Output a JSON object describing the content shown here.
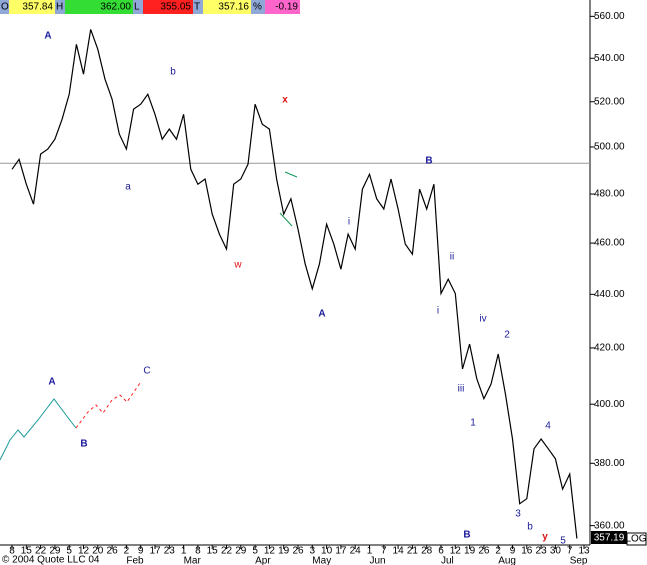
{
  "chart_data": {
    "type": "line",
    "log_scale": true,
    "quote": {
      "open_label": "O",
      "open": "357.84",
      "high_label": "H",
      "high": "362.00",
      "low_label": "L",
      "low": "355.05",
      "last_label": "T",
      "last": "357.16",
      "change_label": "%",
      "change": "-0.19"
    },
    "categories": [
      "8",
      null,
      "15",
      null,
      "22",
      null,
      "29",
      null,
      "5",
      null,
      "12",
      null,
      "20",
      null,
      "26",
      null,
      "2",
      null,
      "9",
      null,
      "17",
      null,
      "23",
      null,
      "1",
      null,
      "8",
      null,
      "15",
      null,
      "22",
      null,
      "29",
      null,
      "5",
      null,
      "12",
      null,
      "19",
      null,
      "26",
      null,
      "3",
      null,
      "10",
      null,
      "17",
      null,
      "24",
      null,
      "1",
      null,
      "7",
      null,
      "14",
      null,
      "21",
      null,
      "28",
      null,
      "6",
      null,
      "12",
      null,
      "19",
      null,
      "26",
      null,
      "2",
      null,
      "9",
      null,
      "16",
      null,
      "23",
      null,
      "30",
      null,
      "7",
      null,
      "13"
    ],
    "months": [
      null,
      null,
      null,
      null,
      null,
      null,
      null,
      null,
      null,
      null,
      null,
      null,
      null,
      null,
      null,
      null,
      "Feb",
      null,
      null,
      null,
      null,
      null,
      null,
      null,
      "Mar",
      null,
      null,
      null,
      null,
      null,
      null,
      null,
      null,
      null,
      "Apr",
      null,
      null,
      null,
      null,
      null,
      null,
      null,
      "May",
      null,
      null,
      null,
      null,
      null,
      null,
      null,
      "Jun",
      null,
      null,
      null,
      null,
      null,
      null,
      null,
      null,
      null,
      "Jul",
      null,
      null,
      null,
      null,
      null,
      null,
      null,
      "Aug",
      null,
      null,
      null,
      null,
      null,
      null,
      null,
      null,
      null,
      "Sep",
      null,
      null
    ],
    "values": [
      490.4,
      494.7,
      484.1,
      475.8,
      496.9,
      499.1,
      503.4,
      512.2,
      523.4,
      546.6,
      532.6,
      553.7,
      544.2,
      530.3,
      521.1,
      505.6,
      499.1,
      516.7,
      518.9,
      523.4,
      514.4,
      503.4,
      507.8,
      503.4,
      514.4,
      490.4,
      484.1,
      486.3,
      471.7,
      463.6,
      457.6,
      484.1,
      486.3,
      492.6,
      518.9,
      510.0,
      507.8,
      486.3,
      471.7,
      478.0,
      465.6,
      451.7,
      442.1,
      451.7,
      467.6,
      459.6,
      449.7,
      463.6,
      457.6,
      482.0,
      488.3,
      478.0,
      473.8,
      486.3,
      473.8,
      459.6,
      455.6,
      482.0,
      473.8,
      484.1,
      440.3,
      445.8,
      440.3,
      412.4,
      421.4,
      408.9,
      401.9,
      407.1,
      417.8,
      403.6,
      388.1,
      366.9,
      368.5,
      384.8,
      388.1,
      384.8,
      381.5,
      371.6,
      376.5,
      356.0,
      null
    ],
    "color": "#000000",
    "reference_line": 493,
    "ylim": [
      354,
      568
    ],
    "yticks": [
      {
        "value": 360,
        "label": "360.00"
      },
      {
        "value": 380,
        "label": "380.00"
      },
      {
        "value": 400,
        "label": "400.00"
      },
      {
        "value": 420,
        "label": "420.00"
      },
      {
        "value": 440,
        "label": "440.00"
      },
      {
        "value": 460,
        "label": "460.00"
      },
      {
        "value": 480,
        "label": "480.00"
      },
      {
        "value": 500,
        "label": "500.00"
      },
      {
        "value": 520,
        "label": "520.00"
      },
      {
        "value": 540,
        "label": "540.00"
      },
      {
        "value": 560,
        "label": "560.00"
      }
    ],
    "last_price_label": "357.19",
    "scale_label": "LOG",
    "copyright": "© 2004 Quote LLC 04",
    "annotations": [
      "A",
      "b",
      "a",
      "x",
      "w",
      "A",
      "i",
      "B",
      "ii",
      "i",
      "iv",
      "2",
      "iii",
      "1",
      "4",
      "3",
      "b",
      "y",
      "5",
      "B",
      "A",
      "B",
      "C"
    ]
  }
}
